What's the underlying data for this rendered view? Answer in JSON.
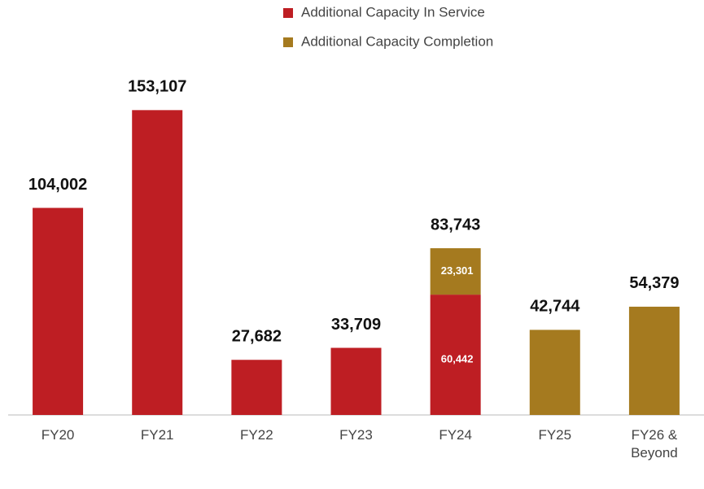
{
  "chart_data": {
    "type": "stacked_bar",
    "categories": [
      "FY20",
      "FY21",
      "FY22",
      "FY23",
      "FY24",
      "FY25",
      "FY26 & Beyond"
    ],
    "series": [
      {
        "name": "Additional Capacity In Service",
        "color": "#be1e23",
        "values": [
          104002,
          153107,
          27682,
          33709,
          60442,
          null,
          null
        ],
        "value_labels": [
          null,
          null,
          null,
          null,
          "60,442",
          null,
          null
        ]
      },
      {
        "name": "Additional Capacity Completion",
        "color": "#a57a1f",
        "values": [
          null,
          null,
          null,
          null,
          23301,
          42744,
          54379
        ],
        "value_labels": [
          null,
          null,
          null,
          null,
          "23,301",
          null,
          null
        ]
      }
    ],
    "totals": [
      104002,
      153107,
      27682,
      33709,
      83743,
      42744,
      54379
    ],
    "total_labels": [
      "104,002",
      "153,107",
      "27,682",
      "33,709",
      "83,743",
      "42,744",
      "54,379"
    ],
    "ylim": [
      0,
      170000
    ],
    "grid": false
  }
}
